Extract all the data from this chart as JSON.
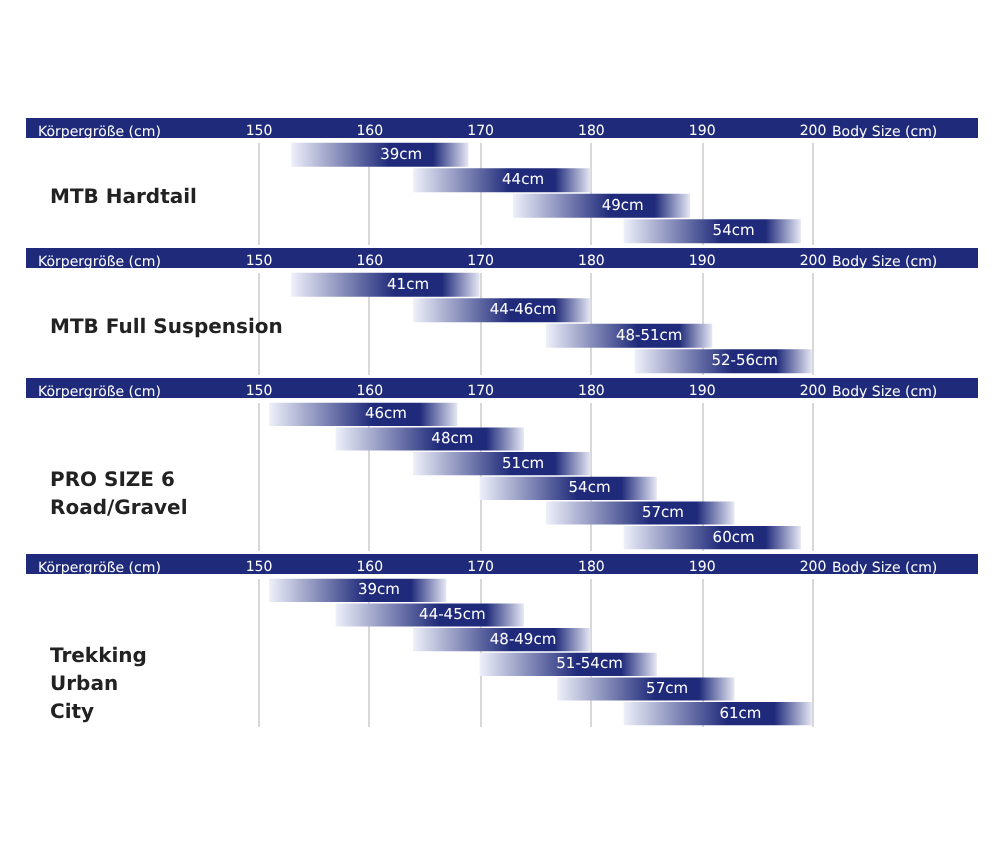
{
  "chart_data": [
    {
      "type": "bar",
      "orientation": "horizontal",
      "title": "MTB Hardtail",
      "annotations": [
        "Körpergröße (cm)",
        "Body Size (cm)"
      ],
      "categories": [
        "39cm",
        "44cm",
        "49cm",
        "54cm"
      ],
      "base": [
        153,
        164,
        173,
        183
      ],
      "values": [
        16,
        16,
        16,
        16
      ],
      "color": "#1f2a7a",
      "xlim": [
        150,
        200
      ],
      "xticks": [
        150,
        160,
        170,
        180,
        190,
        200
      ],
      "grid": "x",
      "tick_labels": "x"
    },
    {
      "type": "bar",
      "orientation": "horizontal",
      "title": "MTB Full Suspension",
      "annotations": [
        "Körpergröße (cm)",
        "Body Size (cm)"
      ],
      "categories": [
        "41cm",
        "44-46cm",
        "48-51cm",
        "52-56cm"
      ],
      "base": [
        153,
        164,
        176,
        184
      ],
      "values": [
        17,
        16,
        15,
        16
      ],
      "color": "#1f2a7a",
      "xlim": [
        150,
        200
      ],
      "xticks": [
        150,
        160,
        170,
        180,
        190,
        200
      ],
      "grid": "x",
      "tick_labels": "x"
    },
    {
      "type": "bar",
      "orientation": "horizontal",
      "title": "PRO SIZE 6\nRoad/Gravel",
      "annotations": [
        "Körpergröße (cm)",
        "Body Size (cm)"
      ],
      "categories": [
        "46cm",
        "48cm",
        "51cm",
        "54cm",
        "57cm",
        "60cm"
      ],
      "base": [
        151,
        157,
        164,
        170,
        176,
        183
      ],
      "values": [
        17,
        17,
        16,
        16,
        17,
        16
      ],
      "color": "#1f2a7a",
      "xlim": [
        150,
        200
      ],
      "xticks": [
        150,
        160,
        170,
        180,
        190,
        200
      ],
      "grid": "x",
      "tick_labels": "x"
    },
    {
      "type": "bar",
      "orientation": "horizontal",
      "title": "Trekking\nUrban\nCity",
      "annotations": [
        "Körpergröße (cm)",
        "Body Size (cm)"
      ],
      "categories": [
        "39cm",
        "44-45cm",
        "48-49cm",
        "51-54cm",
        "57cm",
        "61cm"
      ],
      "base": [
        151,
        157,
        164,
        170,
        177,
        183
      ],
      "values": [
        16,
        17,
        16,
        16,
        16,
        17
      ],
      "color": "#1f2a7a",
      "xlim": [
        150,
        200
      ],
      "xticks": [
        150,
        160,
        170,
        180,
        190,
        200
      ],
      "grid": "x",
      "tick_labels": "x"
    }
  ]
}
